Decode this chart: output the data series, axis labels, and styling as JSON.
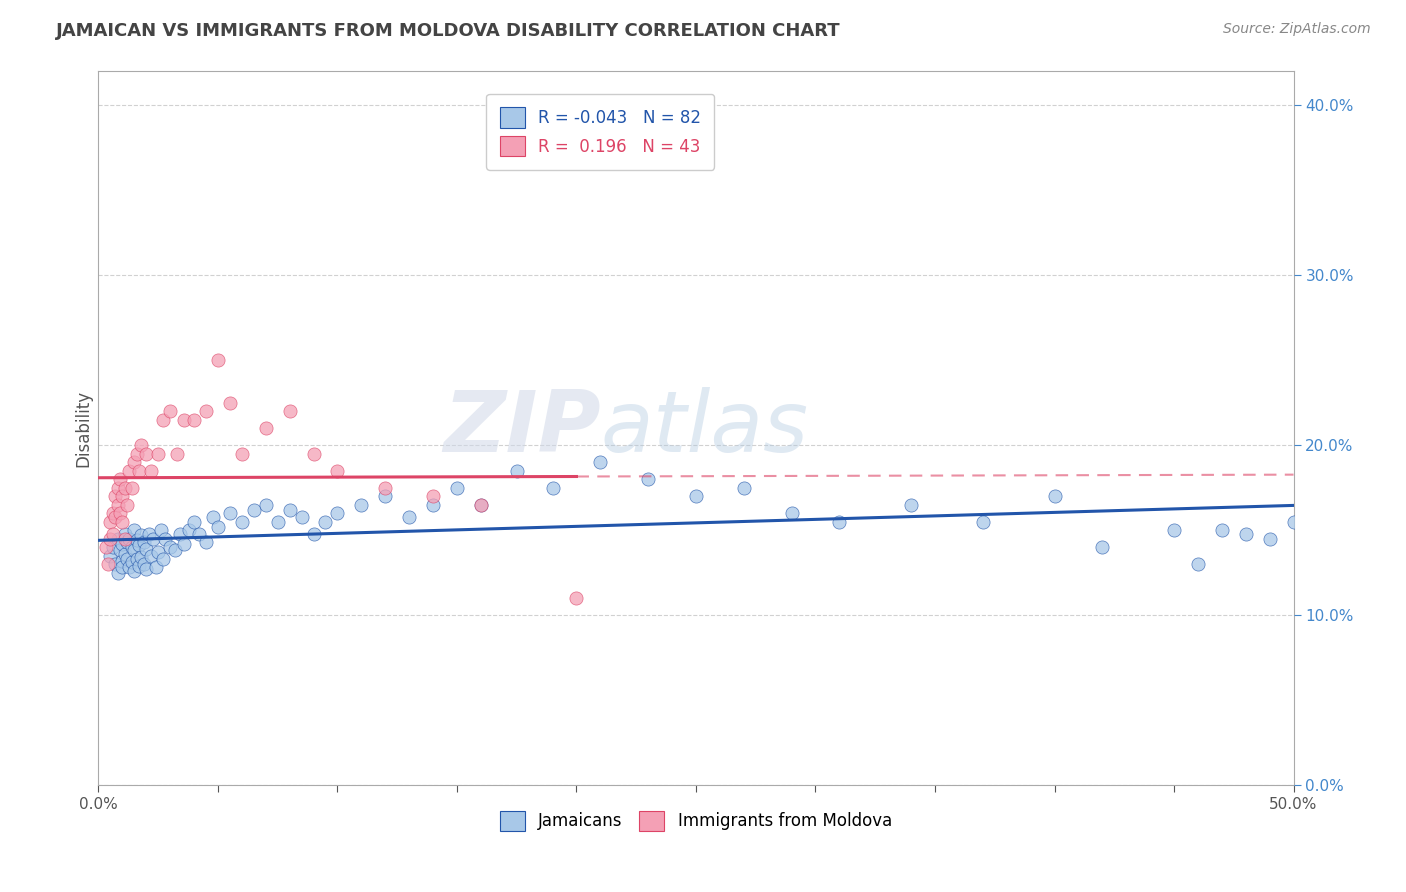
{
  "title": "JAMAICAN VS IMMIGRANTS FROM MOLDOVA DISABILITY CORRELATION CHART",
  "source_text": "Source: ZipAtlas.com",
  "ylabel": "Disability",
  "legend_label1": "Jamaicans",
  "legend_label2": "Immigrants from Moldova",
  "watermark_zip": "ZIP",
  "watermark_atlas": "atlas",
  "r1": -0.043,
  "n1": 82,
  "r2": 0.196,
  "n2": 43,
  "xlim": [
    0.0,
    0.5
  ],
  "ylim": [
    0.0,
    0.42
  ],
  "color1": "#a8c8e8",
  "color2": "#f4a0b5",
  "line1_color": "#2255aa",
  "line2_color": "#dd4466",
  "background_color": "#ffffff",
  "grid_color": "#cccccc",
  "title_color": "#444444",
  "tick_color_right": "#4488cc",
  "jamaicans_x": [
    0.005,
    0.006,
    0.007,
    0.008,
    0.008,
    0.009,
    0.01,
    0.01,
    0.01,
    0.011,
    0.011,
    0.012,
    0.012,
    0.013,
    0.013,
    0.014,
    0.014,
    0.015,
    0.015,
    0.015,
    0.016,
    0.016,
    0.017,
    0.017,
    0.018,
    0.018,
    0.019,
    0.019,
    0.02,
    0.02,
    0.021,
    0.022,
    0.023,
    0.024,
    0.025,
    0.026,
    0.027,
    0.028,
    0.03,
    0.032,
    0.034,
    0.036,
    0.038,
    0.04,
    0.042,
    0.045,
    0.048,
    0.05,
    0.055,
    0.06,
    0.065,
    0.07,
    0.075,
    0.08,
    0.085,
    0.09,
    0.095,
    0.1,
    0.11,
    0.12,
    0.13,
    0.14,
    0.15,
    0.16,
    0.175,
    0.19,
    0.21,
    0.23,
    0.25,
    0.27,
    0.29,
    0.31,
    0.34,
    0.37,
    0.4,
    0.42,
    0.45,
    0.46,
    0.47,
    0.48,
    0.49,
    0.5
  ],
  "jamaicans_y": [
    0.135,
    0.14,
    0.13,
    0.145,
    0.125,
    0.138,
    0.132,
    0.142,
    0.128,
    0.136,
    0.148,
    0.133,
    0.143,
    0.128,
    0.145,
    0.131,
    0.14,
    0.126,
    0.138,
    0.15,
    0.133,
    0.144,
    0.129,
    0.141,
    0.134,
    0.147,
    0.13,
    0.143,
    0.127,
    0.139,
    0.148,
    0.135,
    0.145,
    0.128,
    0.137,
    0.15,
    0.133,
    0.145,
    0.14,
    0.138,
    0.148,
    0.142,
    0.15,
    0.155,
    0.148,
    0.143,
    0.158,
    0.152,
    0.16,
    0.155,
    0.162,
    0.165,
    0.155,
    0.162,
    0.158,
    0.148,
    0.155,
    0.16,
    0.165,
    0.17,
    0.158,
    0.165,
    0.175,
    0.165,
    0.185,
    0.175,
    0.19,
    0.18,
    0.17,
    0.175,
    0.16,
    0.155,
    0.165,
    0.155,
    0.17,
    0.14,
    0.15,
    0.13,
    0.15,
    0.148,
    0.145,
    0.155
  ],
  "moldova_x": [
    0.003,
    0.004,
    0.005,
    0.005,
    0.006,
    0.006,
    0.007,
    0.007,
    0.008,
    0.008,
    0.009,
    0.009,
    0.01,
    0.01,
    0.011,
    0.011,
    0.012,
    0.013,
    0.014,
    0.015,
    0.016,
    0.017,
    0.018,
    0.02,
    0.022,
    0.025,
    0.027,
    0.03,
    0.033,
    0.036,
    0.04,
    0.045,
    0.05,
    0.055,
    0.06,
    0.07,
    0.08,
    0.09,
    0.1,
    0.12,
    0.14,
    0.16,
    0.2
  ],
  "moldova_y": [
    0.14,
    0.13,
    0.155,
    0.145,
    0.16,
    0.148,
    0.17,
    0.158,
    0.165,
    0.175,
    0.16,
    0.18,
    0.155,
    0.17,
    0.145,
    0.175,
    0.165,
    0.185,
    0.175,
    0.19,
    0.195,
    0.185,
    0.2,
    0.195,
    0.185,
    0.195,
    0.215,
    0.22,
    0.195,
    0.215,
    0.215,
    0.22,
    0.25,
    0.225,
    0.195,
    0.21,
    0.22,
    0.195,
    0.185,
    0.175,
    0.17,
    0.165,
    0.11
  ]
}
